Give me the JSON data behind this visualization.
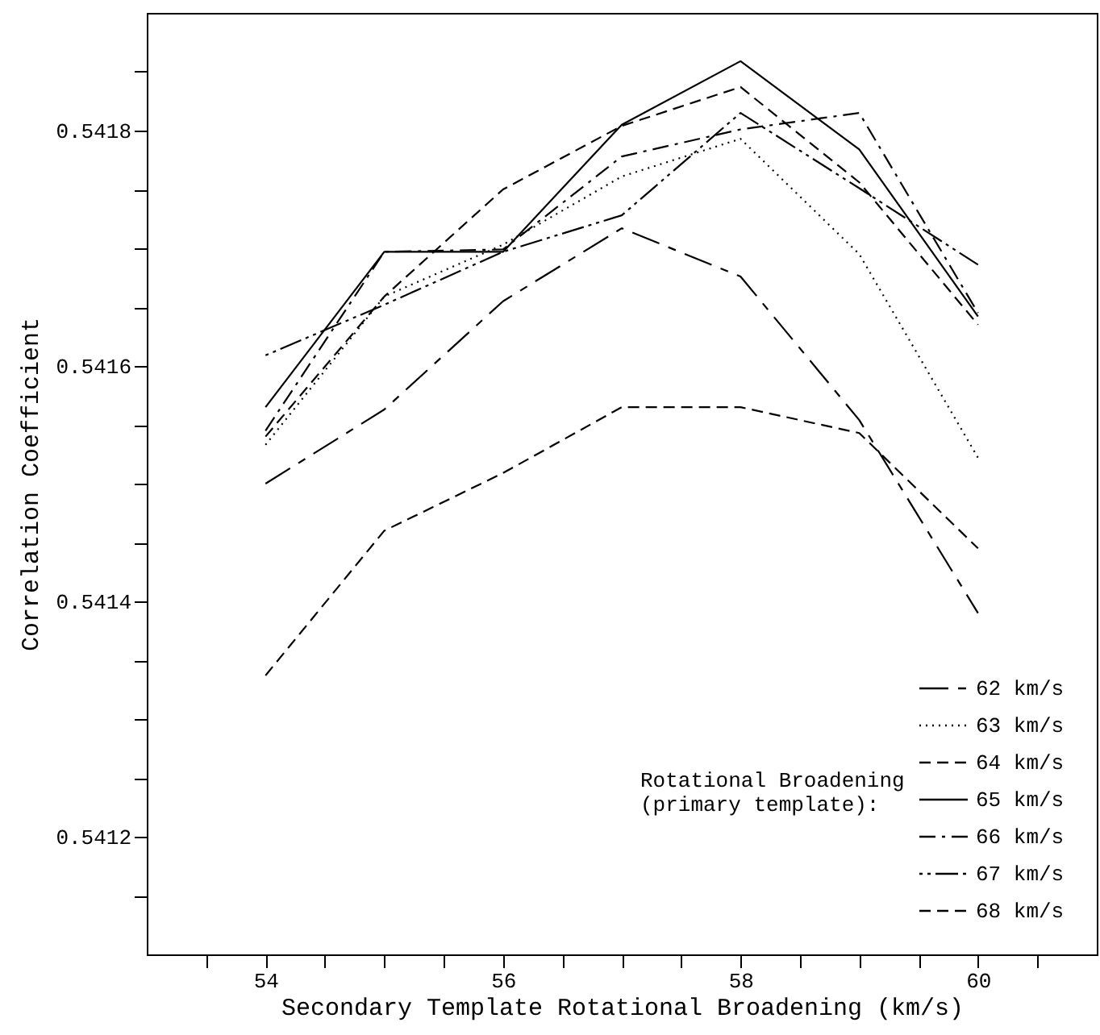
{
  "chart_data": {
    "type": "line",
    "xlabel": "Secondary Template Rotational Broadening (km/s)",
    "ylabel": "Correlation Coefficient",
    "legend_title": "Rotational Broadening\n(primary template):",
    "x": [
      54,
      55,
      56,
      57,
      58,
      59,
      60
    ],
    "xlim": [
      53,
      61
    ],
    "xticks": [
      {
        "value": 53.5,
        "label": null
      },
      54,
      {
        "value": 54.5,
        "label": null
      },
      {
        "value": 55,
        "label": null
      },
      {
        "value": 55.5,
        "label": null
      },
      56,
      {
        "value": 56.5,
        "label": null
      },
      {
        "value": 57,
        "label": null
      },
      {
        "value": 57.5,
        "label": null
      },
      58,
      {
        "value": 58.5,
        "label": null
      },
      {
        "value": 59,
        "label": null
      },
      {
        "value": 59.5,
        "label": null
      },
      60,
      {
        "value": 60.5,
        "label": null
      }
    ],
    "ylim": [
      0.5411,
      0.5419
    ],
    "yticks": [
      {
        "value": 0.54115,
        "label": null
      },
      0.5412,
      {
        "value": 0.54125,
        "label": null
      },
      {
        "value": 0.5413,
        "label": null
      },
      {
        "value": 0.54135,
        "label": null
      },
      0.5414,
      {
        "value": 0.54145,
        "label": null
      },
      {
        "value": 0.5415,
        "label": null
      },
      {
        "value": 0.54155,
        "label": null
      },
      0.5416,
      {
        "value": 0.54165,
        "label": null
      },
      {
        "value": 0.5417,
        "label": null
      },
      {
        "value": 0.54175,
        "label": null
      },
      0.5418,
      {
        "value": 0.54185,
        "label": null
      }
    ],
    "legend": "bottom right",
    "grid": false,
    "marker": "none",
    "series": [
      {
        "name": "62 km/s",
        "color": "#000000",
        "line_style": "longdash",
        "values": [
          0.5415,
          0.541563,
          0.541655,
          0.541717,
          0.541676,
          0.541554,
          0.54139
        ]
      },
      {
        "name": "63 km/s",
        "color": "#000000",
        "line_style": "dotted",
        "values": [
          0.541533,
          0.541659,
          0.541703,
          0.541761,
          0.541793,
          0.541695,
          0.541522
        ]
      },
      {
        "name": "64 km/s",
        "color": "#000000",
        "line_style": "dashed",
        "values": [
          0.54154,
          0.541659,
          0.54175,
          0.541804,
          0.541837,
          0.541756,
          0.541635
        ]
      },
      {
        "name": "65 km/s",
        "color": "#000000",
        "line_style": "solid",
        "values": [
          0.541565,
          0.541697,
          0.541697,
          0.541805,
          0.541859,
          0.541784,
          0.541642
        ]
      },
      {
        "name": "66 km/s",
        "color": "#000000",
        "line_style": "dashdot",
        "values": [
          0.541545,
          0.541697,
          0.541699,
          0.541778,
          0.541801,
          0.541815,
          0.541645
        ]
      },
      {
        "name": "67 km/s",
        "color": "#000000",
        "line_style": "dashdotdot",
        "values": [
          0.541609,
          0.541652,
          0.541697,
          0.541728,
          0.541815,
          0.541751,
          0.541686
        ]
      },
      {
        "name": "68 km/s",
        "color": "#000000",
        "line_style": "dashed",
        "values": [
          0.541337,
          0.54146,
          0.541509,
          0.541565,
          0.541565,
          0.541543,
          0.541445
        ]
      }
    ]
  }
}
